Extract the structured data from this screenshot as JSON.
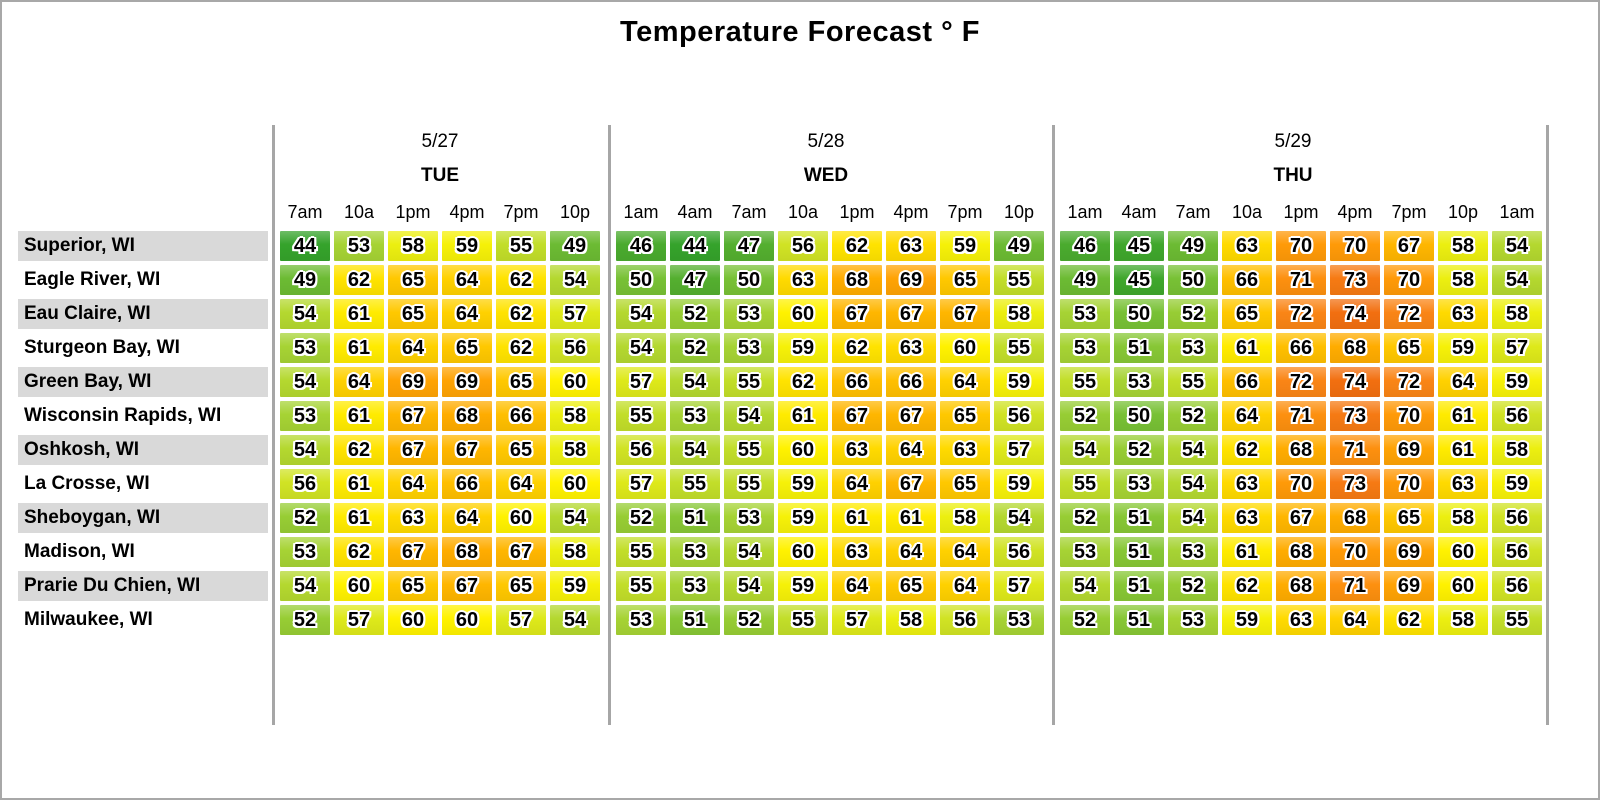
{
  "chart_data": {
    "type": "heatmap",
    "title": "Temperature Forecast ° F",
    "unit": "°F",
    "x_groups": [
      {
        "date": "5/27",
        "day": "TUE",
        "times": [
          "7am",
          "10a",
          "1pm",
          "4pm",
          "7pm",
          "10p"
        ]
      },
      {
        "date": "5/28",
        "day": "WED",
        "times": [
          "1am",
          "4am",
          "7am",
          "10a",
          "1pm",
          "4pm",
          "7pm",
          "10p"
        ]
      },
      {
        "date": "5/29",
        "day": "THU",
        "times": [
          "1am",
          "4am",
          "7am",
          "10a",
          "1pm",
          "4pm",
          "7pm",
          "10p",
          "1am"
        ]
      }
    ],
    "y_categories": [
      "Superior, WI",
      "Eagle River, WI",
      "Eau Claire, WI",
      "Sturgeon Bay, WI",
      "Green Bay, WI",
      "Wisconsin Rapids, WI",
      "Oshkosh, WI",
      "La Crosse, WI",
      "Sheboygan, WI",
      "Madison, WI",
      "Prarie Du Chien, WI",
      "Milwaukee, WI"
    ],
    "series": [
      {
        "city": "Superior, WI",
        "values_by_day": [
          [
            44,
            53,
            58,
            59,
            55,
            49
          ],
          [
            46,
            44,
            47,
            56,
            62,
            63,
            59,
            49
          ],
          [
            46,
            45,
            49,
            63,
            70,
            70,
            67,
            58,
            54
          ]
        ]
      },
      {
        "city": "Eagle River, WI",
        "values_by_day": [
          [
            49,
            62,
            65,
            64,
            62,
            54
          ],
          [
            50,
            47,
            50,
            63,
            68,
            69,
            65,
            55
          ],
          [
            49,
            45,
            50,
            66,
            71,
            73,
            70,
            58,
            54
          ]
        ]
      },
      {
        "city": "Eau Claire, WI",
        "values_by_day": [
          [
            54,
            61,
            65,
            64,
            62,
            57
          ],
          [
            54,
            52,
            53,
            60,
            67,
            67,
            67,
            58
          ],
          [
            53,
            50,
            52,
            65,
            72,
            74,
            72,
            63,
            58
          ]
        ]
      },
      {
        "city": "Sturgeon Bay, WI",
        "values_by_day": [
          [
            53,
            61,
            64,
            65,
            62,
            56
          ],
          [
            54,
            52,
            53,
            59,
            62,
            63,
            60,
            55
          ],
          [
            53,
            51,
            53,
            61,
            66,
            68,
            65,
            59,
            57
          ]
        ]
      },
      {
        "city": "Green Bay, WI",
        "values_by_day": [
          [
            54,
            64,
            69,
            69,
            65,
            60
          ],
          [
            57,
            54,
            55,
            62,
            66,
            66,
            64,
            59
          ],
          [
            55,
            53,
            55,
            66,
            72,
            74,
            72,
            64,
            59
          ]
        ]
      },
      {
        "city": "Wisconsin Rapids, WI",
        "values_by_day": [
          [
            53,
            61,
            67,
            68,
            66,
            58
          ],
          [
            55,
            53,
            54,
            61,
            67,
            67,
            65,
            56
          ],
          [
            52,
            50,
            52,
            64,
            71,
            73,
            70,
            61,
            56
          ]
        ]
      },
      {
        "city": "Oshkosh, WI",
        "values_by_day": [
          [
            54,
            62,
            67,
            67,
            65,
            58
          ],
          [
            56,
            54,
            55,
            60,
            63,
            64,
            63,
            57
          ],
          [
            54,
            52,
            54,
            62,
            68,
            71,
            69,
            61,
            58
          ]
        ]
      },
      {
        "city": "La Crosse, WI",
        "values_by_day": [
          [
            56,
            61,
            64,
            66,
            64,
            60
          ],
          [
            57,
            55,
            55,
            59,
            64,
            67,
            65,
            59
          ],
          [
            55,
            53,
            54,
            63,
            70,
            73,
            70,
            63,
            59
          ]
        ]
      },
      {
        "city": "Sheboygan, WI",
        "values_by_day": [
          [
            52,
            61,
            63,
            64,
            60,
            54
          ],
          [
            52,
            51,
            53,
            59,
            61,
            61,
            58,
            54
          ],
          [
            52,
            51,
            54,
            63,
            67,
            68,
            65,
            58,
            56
          ]
        ]
      },
      {
        "city": "Madison, WI",
        "values_by_day": [
          [
            53,
            62,
            67,
            68,
            67,
            58
          ],
          [
            55,
            53,
            54,
            60,
            63,
            64,
            64,
            56
          ],
          [
            53,
            51,
            53,
            61,
            68,
            70,
            69,
            60,
            56
          ]
        ]
      },
      {
        "city": "Prarie Du Chien, WI",
        "values_by_day": [
          [
            54,
            60,
            65,
            67,
            65,
            59
          ],
          [
            55,
            53,
            54,
            59,
            64,
            65,
            64,
            57
          ],
          [
            54,
            51,
            52,
            62,
            68,
            71,
            69,
            60,
            56
          ]
        ]
      },
      {
        "city": "Milwaukee, WI",
        "values_by_day": [
          [
            52,
            57,
            60,
            60,
            57,
            54
          ],
          [
            53,
            51,
            52,
            55,
            57,
            58,
            56,
            53
          ],
          [
            52,
            51,
            53,
            59,
            63,
            64,
            62,
            58,
            55
          ]
        ]
      }
    ],
    "value_range": [
      44,
      74
    ],
    "color_scale_stops": [
      [
        44,
        "#35a32b"
      ],
      [
        47,
        "#54af2f"
      ],
      [
        50,
        "#78c135"
      ],
      [
        53,
        "#a6d334"
      ],
      [
        56,
        "#d0e324"
      ],
      [
        58,
        "#ecef10"
      ],
      [
        60,
        "#fff200"
      ],
      [
        62,
        "#ffe300"
      ],
      [
        64,
        "#ffd100"
      ],
      [
        66,
        "#ffbf00"
      ],
      [
        68,
        "#ffac00"
      ],
      [
        70,
        "#ff9a08"
      ],
      [
        72,
        "#fa8516"
      ],
      [
        74,
        "#f26f10"
      ]
    ],
    "legend": "none",
    "layout": {
      "grid": "off",
      "row_stripe_color": "#d9d9d9",
      "separator_color": "#a6a6a6",
      "frame_border_color": "#a8a8a8",
      "background": "#ffffff",
      "text_color": "#000000"
    }
  }
}
